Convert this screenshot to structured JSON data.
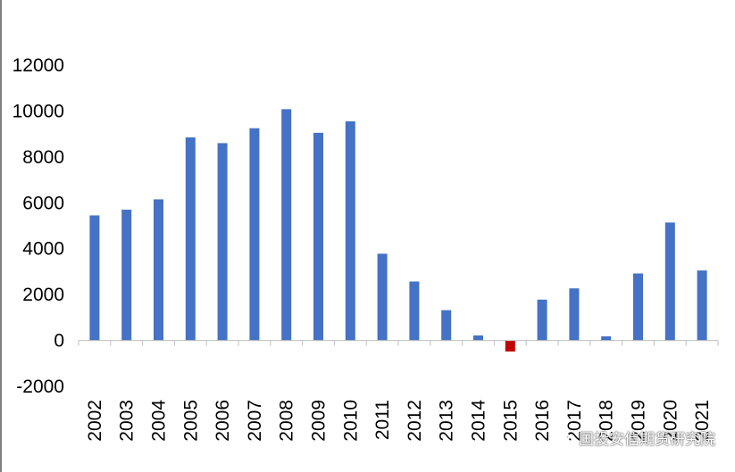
{
  "chart_data": {
    "type": "bar",
    "categories": [
      "2002",
      "2003",
      "2004",
      "2005",
      "2006",
      "2007",
      "2008",
      "2009",
      "2010",
      "2011",
      "2012",
      "2013",
      "2014",
      "2015",
      "2016",
      "2017",
      "2018",
      "2019",
      "2020",
      "2021"
    ],
    "values": [
      5450,
      5700,
      6150,
      8850,
      8600,
      9250,
      10080,
      9050,
      9550,
      3780,
      2570,
      1320,
      220,
      -480,
      1780,
      2270,
      180,
      2920,
      5140,
      3050
    ],
    "ylim": [
      -2000,
      12000
    ],
    "yticks": [
      -2000,
      0,
      2000,
      4000,
      6000,
      8000,
      10000,
      12000
    ],
    "grid": false,
    "colors": {
      "positive": "#4472C4",
      "negative": "#C00000"
    }
  },
  "watermark": {
    "text": "国投安信期货研究院",
    "icon": "wechat-icon"
  }
}
